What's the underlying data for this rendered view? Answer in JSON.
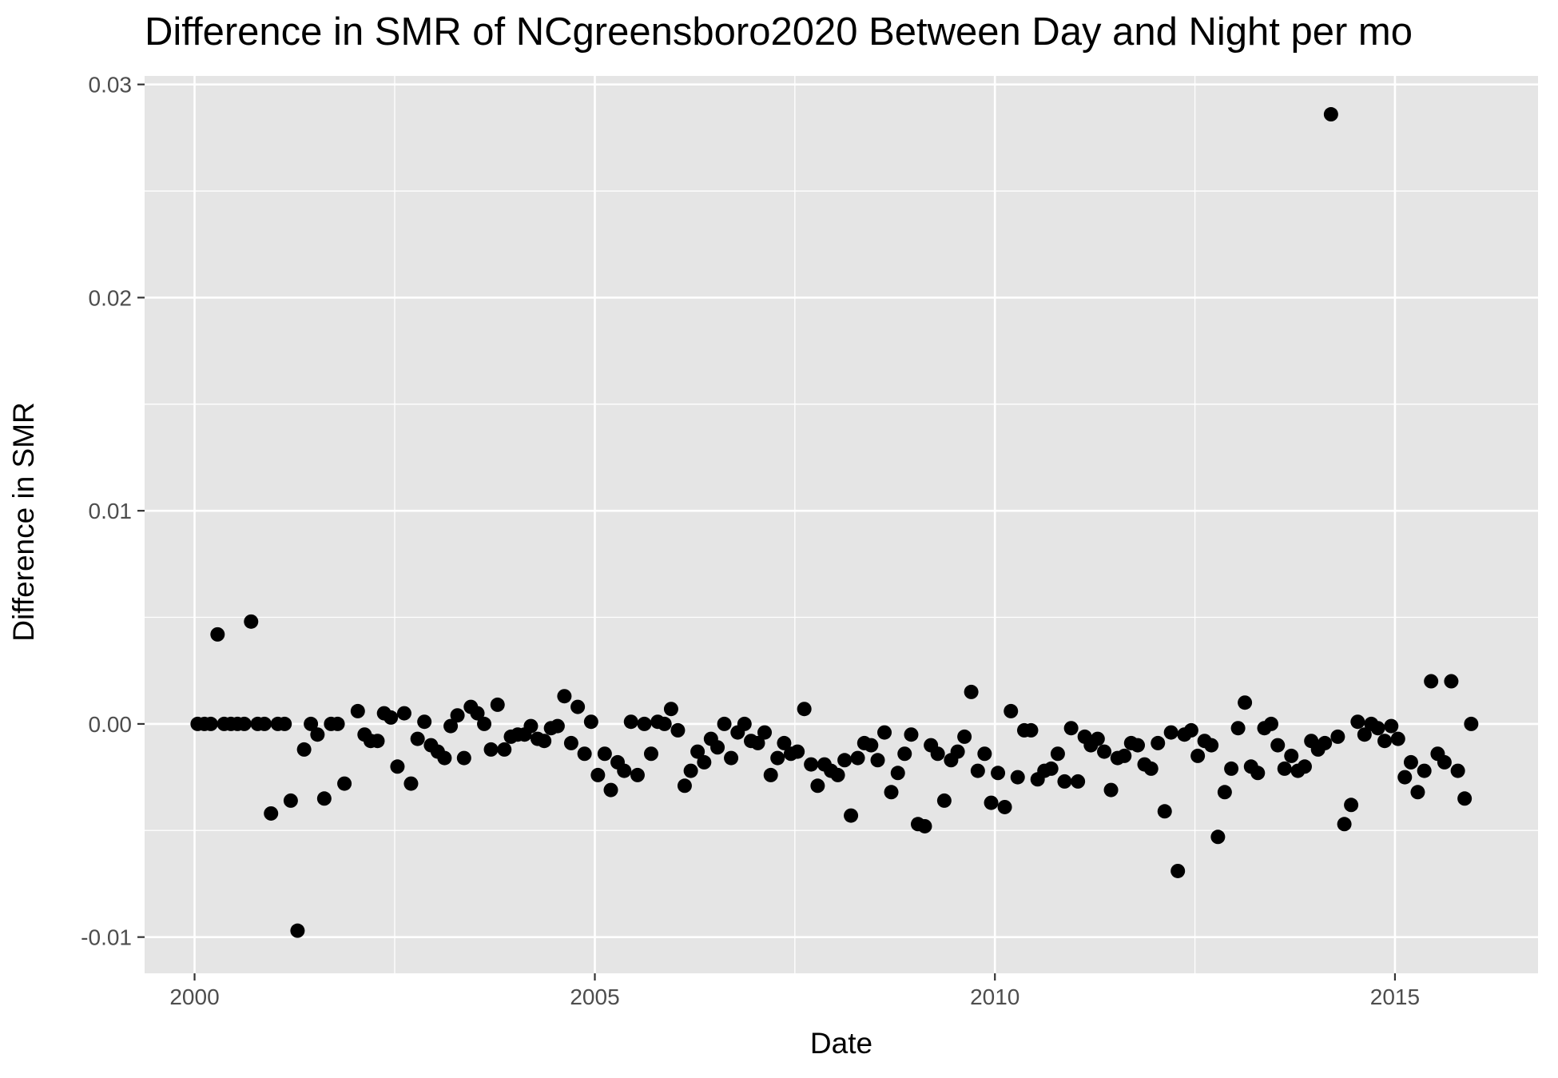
{
  "chart_data": {
    "type": "scatter",
    "title": "Difference in SMR of NCgreensboro2020 Between Day and Night per mo",
    "xlabel": "Date",
    "ylabel": "Difference in SMR",
    "x_ticks": [
      "2000",
      "2005",
      "2010",
      "2015"
    ],
    "y_ticks": [
      "-0.01",
      "0.00",
      "0.01",
      "0.02",
      "0.03"
    ],
    "xlim": [
      "1999-05-18",
      "2016-10-15"
    ],
    "ylim": [
      -0.0117,
      0.0304
    ],
    "grid": true,
    "legend": "none",
    "point_color": "#000000",
    "panel_color": "#e5e5e5",
    "points": [
      [
        "2000-01-15",
        0.0
      ],
      [
        "2000-02-15",
        0.0
      ],
      [
        "2000-03-15",
        0.0
      ],
      [
        "2000-04-15",
        0.0042
      ],
      [
        "2000-05-15",
        0.0
      ],
      [
        "2000-06-15",
        0.0
      ],
      [
        "2000-07-15",
        0.0
      ],
      [
        "2000-08-15",
        0.0
      ],
      [
        "2000-09-15",
        0.0048
      ],
      [
        "2000-10-15",
        0.0
      ],
      [
        "2000-11-15",
        0.0
      ],
      [
        "2000-12-15",
        -0.0042
      ],
      [
        "2001-01-15",
        0.0
      ],
      [
        "2001-02-15",
        0.0
      ],
      [
        "2001-03-15",
        -0.0036
      ],
      [
        "2001-04-15",
        -0.0097
      ],
      [
        "2001-05-15",
        -0.0012
      ],
      [
        "2001-06-15",
        0.0
      ],
      [
        "2001-07-15",
        -0.0005
      ],
      [
        "2001-08-15",
        -0.0035
      ],
      [
        "2001-09-15",
        0.0
      ],
      [
        "2001-10-15",
        0.0
      ],
      [
        "2001-11-15",
        -0.0028
      ],
      [
        "2002-01-15",
        0.0006
      ],
      [
        "2002-02-15",
        -0.0005
      ],
      [
        "2002-03-15",
        -0.0008
      ],
      [
        "2002-04-15",
        -0.0008
      ],
      [
        "2002-05-15",
        0.0005
      ],
      [
        "2002-06-15",
        0.0003
      ],
      [
        "2002-07-15",
        -0.002
      ],
      [
        "2002-08-15",
        0.0005
      ],
      [
        "2002-09-15",
        -0.0028
      ],
      [
        "2002-10-15",
        -0.0007
      ],
      [
        "2002-11-15",
        0.0001
      ],
      [
        "2002-12-15",
        -0.001
      ],
      [
        "2003-01-15",
        -0.0013
      ],
      [
        "2003-02-15",
        -0.0016
      ],
      [
        "2003-03-15",
        -0.0001
      ],
      [
        "2003-04-15",
        0.0004
      ],
      [
        "2003-05-15",
        -0.0016
      ],
      [
        "2003-06-15",
        0.0008
      ],
      [
        "2003-07-15",
        0.0005
      ],
      [
        "2003-08-15",
        0.0
      ],
      [
        "2003-09-15",
        -0.0012
      ],
      [
        "2003-10-15",
        0.0009
      ],
      [
        "2003-11-15",
        -0.0012
      ],
      [
        "2003-12-15",
        -0.0006
      ],
      [
        "2004-01-15",
        -0.0005
      ],
      [
        "2004-02-15",
        -0.0005
      ],
      [
        "2004-03-15",
        -0.0001
      ],
      [
        "2004-04-15",
        -0.0007
      ],
      [
        "2004-05-15",
        -0.0008
      ],
      [
        "2004-06-15",
        -0.0002
      ],
      [
        "2004-07-15",
        -0.0001
      ],
      [
        "2004-08-15",
        0.0013
      ],
      [
        "2004-09-15",
        -0.0009
      ],
      [
        "2004-10-15",
        0.0008
      ],
      [
        "2004-11-15",
        -0.0014
      ],
      [
        "2004-12-15",
        0.0001
      ],
      [
        "2005-01-15",
        -0.0024
      ],
      [
        "2005-02-15",
        -0.0014
      ],
      [
        "2005-03-15",
        -0.0031
      ],
      [
        "2005-04-15",
        -0.0018
      ],
      [
        "2005-05-15",
        -0.0022
      ],
      [
        "2005-06-15",
        0.0001
      ],
      [
        "2005-07-15",
        -0.0024
      ],
      [
        "2005-08-15",
        0.0
      ],
      [
        "2005-09-15",
        -0.0014
      ],
      [
        "2005-10-15",
        0.0001
      ],
      [
        "2005-11-15",
        0.0
      ],
      [
        "2005-12-15",
        0.0007
      ],
      [
        "2006-01-15",
        -0.0003
      ],
      [
        "2006-02-15",
        -0.0029
      ],
      [
        "2006-03-15",
        -0.0022
      ],
      [
        "2006-04-15",
        -0.0013
      ],
      [
        "2006-05-15",
        -0.0018
      ],
      [
        "2006-06-15",
        -0.0007
      ],
      [
        "2006-07-15",
        -0.0011
      ],
      [
        "2006-08-15",
        0.0
      ],
      [
        "2006-09-15",
        -0.0016
      ],
      [
        "2006-10-15",
        -0.0004
      ],
      [
        "2006-11-15",
        0.0
      ],
      [
        "2006-12-15",
        -0.0008
      ],
      [
        "2007-01-15",
        -0.0009
      ],
      [
        "2007-02-15",
        -0.0004
      ],
      [
        "2007-03-15",
        -0.0024
      ],
      [
        "2007-04-15",
        -0.0016
      ],
      [
        "2007-05-15",
        -0.0009
      ],
      [
        "2007-06-15",
        -0.0014
      ],
      [
        "2007-07-15",
        -0.0013
      ],
      [
        "2007-08-15",
        0.0007
      ],
      [
        "2007-09-15",
        -0.0019
      ],
      [
        "2007-10-15",
        -0.0029
      ],
      [
        "2007-11-15",
        -0.0019
      ],
      [
        "2007-12-15",
        -0.0022
      ],
      [
        "2008-01-15",
        -0.0024
      ],
      [
        "2008-02-15",
        -0.0017
      ],
      [
        "2008-03-15",
        -0.0043
      ],
      [
        "2008-04-15",
        -0.0016
      ],
      [
        "2008-05-15",
        -0.0009
      ],
      [
        "2008-06-15",
        -0.001
      ],
      [
        "2008-07-15",
        -0.0017
      ],
      [
        "2008-08-15",
        -0.0004
      ],
      [
        "2008-09-15",
        -0.0032
      ],
      [
        "2008-10-15",
        -0.0023
      ],
      [
        "2008-11-15",
        -0.0014
      ],
      [
        "2008-12-15",
        -0.0005
      ],
      [
        "2009-01-15",
        -0.0047
      ],
      [
        "2009-02-15",
        -0.0048
      ],
      [
        "2009-03-15",
        -0.001
      ],
      [
        "2009-04-15",
        -0.0014
      ],
      [
        "2009-05-15",
        -0.0036
      ],
      [
        "2009-06-15",
        -0.0017
      ],
      [
        "2009-07-15",
        -0.0013
      ],
      [
        "2009-08-15",
        -0.0006
      ],
      [
        "2009-09-15",
        0.0015
      ],
      [
        "2009-10-15",
        -0.0022
      ],
      [
        "2009-11-15",
        -0.0014
      ],
      [
        "2009-12-15",
        -0.0037
      ],
      [
        "2010-01-15",
        -0.0023
      ],
      [
        "2010-02-15",
        -0.0039
      ],
      [
        "2010-03-15",
        0.0006
      ],
      [
        "2010-04-15",
        -0.0025
      ],
      [
        "2010-05-15",
        -0.0003
      ],
      [
        "2010-06-15",
        -0.0003
      ],
      [
        "2010-07-15",
        -0.0026
      ],
      [
        "2010-08-15",
        -0.0022
      ],
      [
        "2010-09-15",
        -0.0021
      ],
      [
        "2010-10-15",
        -0.0014
      ],
      [
        "2010-11-15",
        -0.0027
      ],
      [
        "2010-12-15",
        -0.0002
      ],
      [
        "2011-01-15",
        -0.0027
      ],
      [
        "2011-02-15",
        -0.0006
      ],
      [
        "2011-03-15",
        -0.001
      ],
      [
        "2011-04-15",
        -0.0007
      ],
      [
        "2011-05-15",
        -0.0013
      ],
      [
        "2011-06-15",
        -0.0031
      ],
      [
        "2011-07-15",
        -0.0016
      ],
      [
        "2011-08-15",
        -0.0015
      ],
      [
        "2011-09-15",
        -0.0009
      ],
      [
        "2011-10-15",
        -0.001
      ],
      [
        "2011-11-15",
        -0.0019
      ],
      [
        "2011-12-15",
        -0.0021
      ],
      [
        "2012-01-15",
        -0.0009
      ],
      [
        "2012-02-15",
        -0.0041
      ],
      [
        "2012-03-15",
        -0.0004
      ],
      [
        "2012-04-15",
        -0.0069
      ],
      [
        "2012-05-15",
        -0.0005
      ],
      [
        "2012-06-15",
        -0.0003
      ],
      [
        "2012-07-15",
        -0.0015
      ],
      [
        "2012-08-15",
        -0.0008
      ],
      [
        "2012-09-15",
        -0.001
      ],
      [
        "2012-10-15",
        -0.0053
      ],
      [
        "2012-11-15",
        -0.0032
      ],
      [
        "2012-12-15",
        -0.0021
      ],
      [
        "2013-01-15",
        -0.0002
      ],
      [
        "2013-02-15",
        0.001
      ],
      [
        "2013-03-15",
        -0.002
      ],
      [
        "2013-04-15",
        -0.0023
      ],
      [
        "2013-05-15",
        -0.0002
      ],
      [
        "2013-06-15",
        0.0
      ],
      [
        "2013-07-15",
        -0.001
      ],
      [
        "2013-08-15",
        -0.0021
      ],
      [
        "2013-09-15",
        -0.0015
      ],
      [
        "2013-10-15",
        -0.0022
      ],
      [
        "2013-11-15",
        -0.002
      ],
      [
        "2013-12-15",
        -0.0008
      ],
      [
        "2014-01-15",
        -0.0012
      ],
      [
        "2014-02-15",
        -0.0009
      ],
      [
        "2014-03-15",
        0.0286
      ],
      [
        "2014-04-15",
        -0.0006
      ],
      [
        "2014-05-15",
        -0.0047
      ],
      [
        "2014-06-15",
        -0.0038
      ],
      [
        "2014-07-15",
        0.0001
      ],
      [
        "2014-08-15",
        -0.0005
      ],
      [
        "2014-09-15",
        0.0
      ],
      [
        "2014-10-15",
        -0.0002
      ],
      [
        "2014-11-15",
        -0.0008
      ],
      [
        "2014-12-15",
        -0.0001
      ],
      [
        "2015-01-15",
        -0.0007
      ],
      [
        "2015-02-15",
        -0.0025
      ],
      [
        "2015-03-15",
        -0.0018
      ],
      [
        "2015-04-15",
        -0.0032
      ],
      [
        "2015-05-15",
        -0.0022
      ],
      [
        "2015-06-15",
        0.002
      ],
      [
        "2015-07-15",
        -0.0014
      ],
      [
        "2015-08-15",
        -0.0018
      ],
      [
        "2015-09-15",
        0.002
      ],
      [
        "2015-10-15",
        -0.0022
      ],
      [
        "2015-11-15",
        -0.0035
      ],
      [
        "2015-12-15",
        0.0
      ]
    ]
  }
}
